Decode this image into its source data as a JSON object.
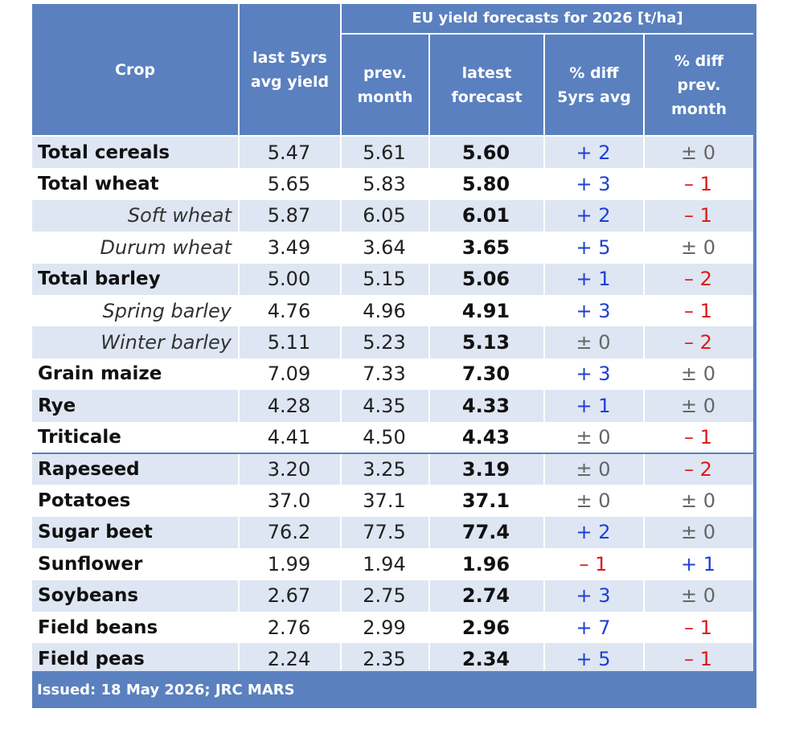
{
  "header": {
    "group_title": "EU yield forecasts for 2026 [t/ha]",
    "crop": "Crop",
    "last5": "last 5yrs\navg yield",
    "prev_month": "prev.\nmonth",
    "latest": "latest\nforecast",
    "diff5": "% diff\n5yrs avg",
    "diffprev": "% diff\nprev.\nmonth"
  },
  "colors": {
    "header_bg": "#5a80bf",
    "shade": "#dde6f2",
    "positive": "#1f3fd6",
    "negative": "#e01818",
    "neutral": "#666666"
  },
  "rows": [
    {
      "crop": "Total cereals",
      "kind": "main",
      "last5": "5.47",
      "prev": "5.61",
      "latest": "5.60",
      "d5": "+ 2",
      "dp": "± 0"
    },
    {
      "crop": "Total wheat",
      "kind": "main",
      "last5": "5.65",
      "prev": "5.83",
      "latest": "5.80",
      "d5": "+ 3",
      "dp": "– 1"
    },
    {
      "crop": "Soft wheat",
      "kind": "sub",
      "last5": "5.87",
      "prev": "6.05",
      "latest": "6.01",
      "d5": "+ 2",
      "dp": "– 1"
    },
    {
      "crop": "Durum wheat",
      "kind": "sub",
      "last5": "3.49",
      "prev": "3.64",
      "latest": "3.65",
      "d5": "+ 5",
      "dp": "± 0"
    },
    {
      "crop": "Total barley",
      "kind": "main",
      "last5": "5.00",
      "prev": "5.15",
      "latest": "5.06",
      "d5": "+ 1",
      "dp": "– 2"
    },
    {
      "crop": "Spring barley",
      "kind": "sub",
      "last5": "4.76",
      "prev": "4.96",
      "latest": "4.91",
      "d5": "+ 3",
      "dp": "– 1"
    },
    {
      "crop": "Winter barley",
      "kind": "sub",
      "last5": "5.11",
      "prev": "5.23",
      "latest": "5.13",
      "d5": "± 0",
      "dp": "– 2"
    },
    {
      "crop": "Grain maize",
      "kind": "main",
      "last5": "7.09",
      "prev": "7.33",
      "latest": "7.30",
      "d5": "+ 3",
      "dp": "± 0"
    },
    {
      "crop": "Rye",
      "kind": "main",
      "last5": "4.28",
      "prev": "4.35",
      "latest": "4.33",
      "d5": "+ 1",
      "dp": "± 0"
    },
    {
      "crop": "Triticale",
      "kind": "main",
      "last5": "4.41",
      "prev": "4.50",
      "latest": "4.43",
      "d5": "± 0",
      "dp": "– 1"
    },
    {
      "crop": "Rapeseed",
      "kind": "main",
      "last5": "3.20",
      "prev": "3.25",
      "latest": "3.19",
      "d5": "± 0",
      "dp": "– 2"
    },
    {
      "crop": "Potatoes",
      "kind": "main",
      "last5": "37.0",
      "prev": "37.1",
      "latest": "37.1",
      "d5": "± 0",
      "dp": "± 0"
    },
    {
      "crop": "Sugar beet",
      "kind": "main",
      "last5": "76.2",
      "prev": "77.5",
      "latest": "77.4",
      "d5": "+ 2",
      "dp": "± 0"
    },
    {
      "crop": "Sunflower",
      "kind": "main",
      "last5": "1.99",
      "prev": "1.94",
      "latest": "1.96",
      "d5": "– 1",
      "dp": "+ 1"
    },
    {
      "crop": "Soybeans",
      "kind": "main",
      "last5": "2.67",
      "prev": "2.75",
      "latest": "2.74",
      "d5": "+ 3",
      "dp": "± 0"
    },
    {
      "crop": "Field beans",
      "kind": "main",
      "last5": "2.76",
      "prev": "2.99",
      "latest": "2.96",
      "d5": "+ 7",
      "dp": "– 1"
    },
    {
      "crop": "Field peas",
      "kind": "main",
      "last5": "2.24",
      "prev": "2.35",
      "latest": "2.34",
      "d5": "+ 5",
      "dp": "– 1"
    }
  ],
  "footer": "Issued: 18 May 2026; JRC MARS"
}
